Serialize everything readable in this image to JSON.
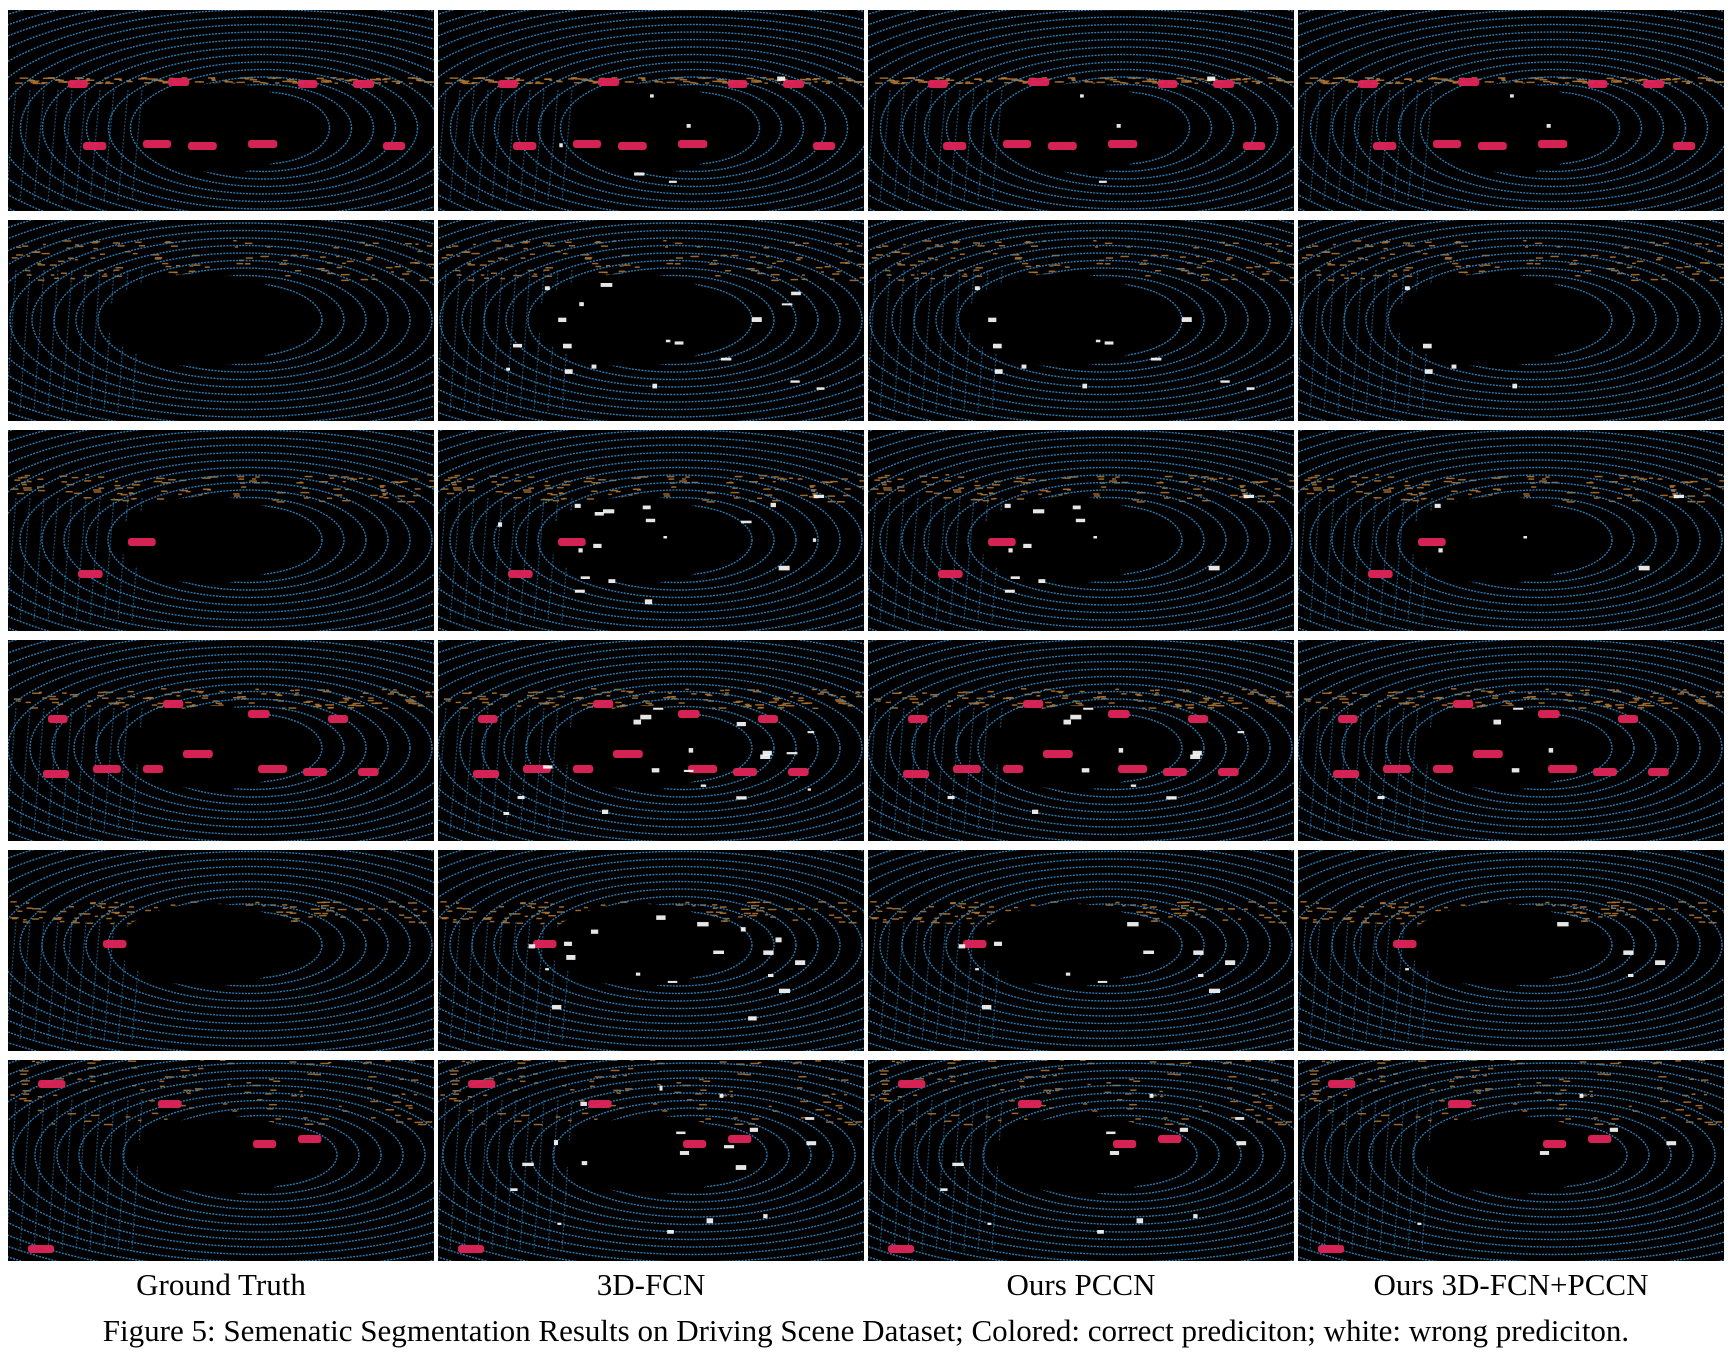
{
  "figure": {
    "column_labels": [
      "Ground Truth",
      "3D-FCN",
      "Ours PCCN",
      "Ours 3D-FCN+PCCN"
    ],
    "caption": "Figure 5: Semenatic Segmentation Results on Driving Scene Dataset; Colored: correct prediciton; white: wrong prediciton.",
    "rows": 6,
    "colors": {
      "background": "#000000",
      "ground": "#2f86c4",
      "building": "#b57a36",
      "car": "#e0245a",
      "wrong": "#ffffff"
    }
  }
}
